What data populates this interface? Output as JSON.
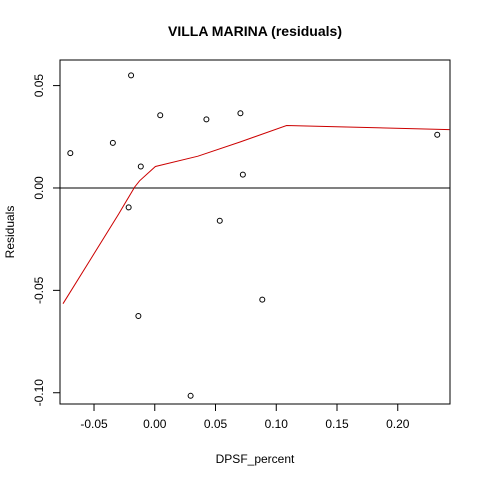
{
  "chart_data": {
    "type": "scatter",
    "title": "VILLA MARINA (residuals)",
    "xlabel": "DPSF_percent",
    "ylabel": "Residuals",
    "xlim": [
      -0.078,
      0.243
    ],
    "ylim": [
      -0.1055,
      0.0625
    ],
    "x_ticks": [
      {
        "value": -0.05,
        "label": "-0.05"
      },
      {
        "value": 0.0,
        "label": "0.00"
      },
      {
        "value": 0.05,
        "label": "0.05"
      },
      {
        "value": 0.1,
        "label": "0.10"
      },
      {
        "value": 0.15,
        "label": "0.15"
      },
      {
        "value": 0.2,
        "label": "0.20"
      }
    ],
    "y_ticks": [
      {
        "value": -0.1,
        "label": "-0.10"
      },
      {
        "value": -0.05,
        "label": "-0.05"
      },
      {
        "value": 0.0,
        "label": "0.00"
      },
      {
        "value": 0.05,
        "label": "0.05"
      }
    ],
    "points": [
      {
        "x": -0.0695,
        "y": 0.017
      },
      {
        "x": -0.0345,
        "y": 0.022
      },
      {
        "x": -0.0195,
        "y": 0.055
      },
      {
        "x": -0.0215,
        "y": -0.0095
      },
      {
        "x": -0.0115,
        "y": 0.0105
      },
      {
        "x": -0.0135,
        "y": -0.0625
      },
      {
        "x": 0.0045,
        "y": 0.0355
      },
      {
        "x": 0.0295,
        "y": -0.1015
      },
      {
        "x": 0.0425,
        "y": 0.0335
      },
      {
        "x": 0.0535,
        "y": -0.016
      },
      {
        "x": 0.0705,
        "y": 0.0365
      },
      {
        "x": 0.0725,
        "y": 0.0065
      },
      {
        "x": 0.0885,
        "y": -0.0545
      },
      {
        "x": 0.2325,
        "y": 0.026
      }
    ],
    "reference_line": {
      "y": 0.0,
      "color": "#000000"
    },
    "smooth_line": {
      "color": "#cc0000",
      "points": [
        {
          "x": -0.0755,
          "y": -0.0565
        },
        {
          "x": -0.0525,
          "y": -0.0345
        },
        {
          "x": -0.0295,
          "y": -0.0125
        },
        {
          "x": -0.0165,
          "y": 0.0005
        },
        {
          "x": -0.0125,
          "y": 0.0035
        },
        {
          "x": 0.0005,
          "y": 0.0105
        },
        {
          "x": 0.0355,
          "y": 0.0155
        },
        {
          "x": 0.0705,
          "y": 0.0225
        },
        {
          "x": 0.1085,
          "y": 0.0305
        },
        {
          "x": 0.2425,
          "y": 0.0285
        }
      ]
    },
    "grid": false,
    "legend": "none"
  }
}
